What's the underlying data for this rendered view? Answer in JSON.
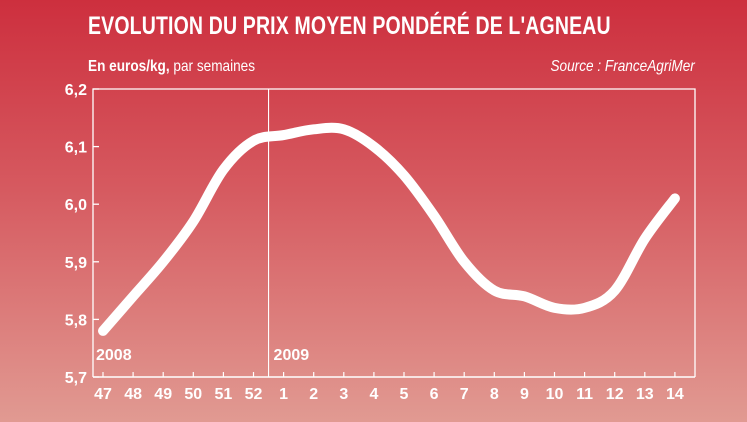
{
  "header": {
    "title": "EVOLUTION DU PRIX MOYEN PONDÉRÉ DE L'AGNEAU",
    "unit_bold": "En euros/kg,",
    "unit_rest": " par semaines",
    "source": "Source : FranceAgriMer"
  },
  "chart_data": {
    "type": "line",
    "title": "EVOLUTION DU PRIX MOYEN PONDÉRÉ DE L'AGNEAU",
    "xlabel": "",
    "ylabel": "",
    "categories": [
      "47",
      "48",
      "49",
      "50",
      "51",
      "52",
      "1",
      "2",
      "3",
      "4",
      "5",
      "6",
      "7",
      "8",
      "9",
      "10",
      "11",
      "12",
      "13",
      "14"
    ],
    "year_labels": [
      {
        "text": "2008",
        "start_index": 0
      },
      {
        "text": "2009",
        "start_index": 6
      }
    ],
    "y_ticks": [
      "6,2",
      "6,1",
      "6,0",
      "5,9",
      "5,8",
      "5,7"
    ],
    "ylim": [
      5.7,
      6.2
    ],
    "grid": false,
    "series": [
      {
        "name": "",
        "values": [
          5.78,
          5.84,
          5.9,
          5.97,
          6.06,
          6.11,
          6.12,
          6.13,
          6.13,
          6.1,
          6.05,
          5.98,
          5.9,
          5.85,
          5.84,
          5.82,
          5.82,
          5.85,
          5.94,
          6.01
        ]
      }
    ],
    "colors": {
      "line": "#ffffff",
      "axis": "#ffffff"
    }
  }
}
